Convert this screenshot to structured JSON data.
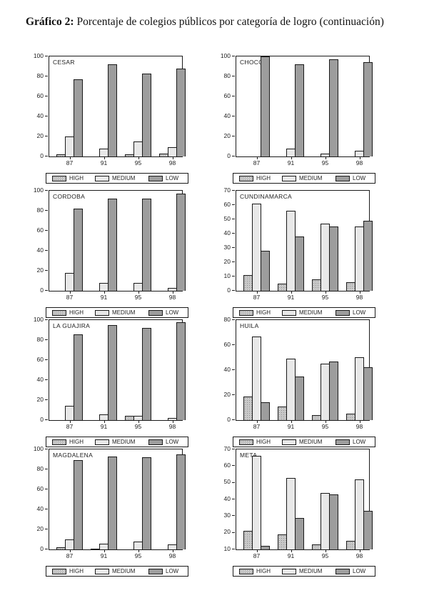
{
  "page": {
    "title_prefix": "Gráfico 2:",
    "title_text": " Porcentaje de colegios públicos por categoría de logro (continuación)"
  },
  "legend": {
    "position": "bottom",
    "items": [
      {
        "key": "high",
        "label": "HIGH",
        "color": "#c8c8c8"
      },
      {
        "key": "medium",
        "label": "MEDIUM",
        "color": "#e8e8e8"
      },
      {
        "key": "low",
        "label": "LOW",
        "color": "#9d9d9d"
      }
    ]
  },
  "chart_data": [
    {
      "type": "bar",
      "title": "CESAR",
      "grid": false,
      "categories": [
        "87",
        "91",
        "95",
        "98"
      ],
      "ylim": [
        0,
        100
      ],
      "yticks": [
        0,
        20,
        40,
        60,
        80,
        100
      ],
      "series": [
        {
          "name": "HIGH",
          "values": [
            2,
            0,
            2,
            3
          ]
        },
        {
          "name": "MEDIUM",
          "values": [
            20,
            8,
            15,
            9
          ]
        },
        {
          "name": "LOW",
          "values": [
            77,
            92,
            83,
            88
          ]
        }
      ]
    },
    {
      "type": "bar",
      "title": "CHOCO",
      "grid": false,
      "categories": [
        "87",
        "91",
        "95",
        "98"
      ],
      "ylim": [
        0,
        100
      ],
      "yticks": [
        0,
        20,
        40,
        60,
        80,
        100
      ],
      "series": [
        {
          "name": "HIGH",
          "values": [
            0,
            0,
            0,
            0
          ]
        },
        {
          "name": "MEDIUM",
          "values": [
            0,
            8,
            3,
            6
          ]
        },
        {
          "name": "LOW",
          "values": [
            100,
            92,
            97,
            94
          ]
        }
      ]
    },
    {
      "type": "bar",
      "title": "CORDOBA",
      "grid": false,
      "categories": [
        "87",
        "91",
        "95",
        "98"
      ],
      "ylim": [
        0,
        100
      ],
      "yticks": [
        0,
        20,
        40,
        60,
        80,
        100
      ],
      "series": [
        {
          "name": "HIGH",
          "values": [
            0,
            0,
            0,
            0
          ]
        },
        {
          "name": "MEDIUM",
          "values": [
            18,
            8,
            8,
            3
          ]
        },
        {
          "name": "LOW",
          "values": [
            82,
            92,
            92,
            97
          ]
        }
      ]
    },
    {
      "type": "bar",
      "title": "CUNDINAMARCA",
      "grid": false,
      "categories": [
        "87",
        "91",
        "95",
        "98"
      ],
      "ylim": [
        0,
        70
      ],
      "yticks": [
        0,
        10,
        20,
        30,
        40,
        50,
        60,
        70
      ],
      "series": [
        {
          "name": "HIGH",
          "values": [
            11,
            5,
            8,
            6
          ]
        },
        {
          "name": "MEDIUM",
          "values": [
            61,
            56,
            47,
            45
          ]
        },
        {
          "name": "LOW",
          "values": [
            28,
            38,
            45,
            49
          ]
        }
      ]
    },
    {
      "type": "bar",
      "title": "LA GUAJIRA",
      "grid": false,
      "categories": [
        "87",
        "91",
        "95",
        "98"
      ],
      "ylim": [
        0,
        100
      ],
      "yticks": [
        0,
        20,
        40,
        60,
        80,
        100
      ],
      "series": [
        {
          "name": "HIGH",
          "values": [
            0,
            0,
            4,
            0
          ]
        },
        {
          "name": "MEDIUM",
          "values": [
            14,
            6,
            4,
            2
          ]
        },
        {
          "name": "LOW",
          "values": [
            86,
            95,
            92,
            98
          ]
        }
      ]
    },
    {
      "type": "bar",
      "title": "HUILA",
      "grid": false,
      "categories": [
        "87",
        "91",
        "95",
        "98"
      ],
      "ylim": [
        0,
        80
      ],
      "yticks": [
        0,
        20,
        40,
        60,
        80
      ],
      "series": [
        {
          "name": "HIGH",
          "values": [
            19,
            11,
            4,
            5
          ]
        },
        {
          "name": "MEDIUM",
          "values": [
            67,
            49,
            45,
            50
          ]
        },
        {
          "name": "LOW",
          "values": [
            14,
            35,
            47,
            42
          ]
        }
      ]
    },
    {
      "type": "bar",
      "title": "MAGDALENA",
      "grid": false,
      "categories": [
        "87",
        "91",
        "95",
        "98"
      ],
      "ylim": [
        0,
        100
      ],
      "yticks": [
        0,
        20,
        40,
        60,
        80,
        100
      ],
      "series": [
        {
          "name": "HIGH",
          "values": [
            2,
            1,
            0,
            0
          ]
        },
        {
          "name": "MEDIUM",
          "values": [
            10,
            6,
            8,
            5
          ]
        },
        {
          "name": "LOW",
          "values": [
            89,
            93,
            92,
            95
          ]
        }
      ]
    },
    {
      "type": "bar",
      "title": "META",
      "grid": false,
      "categories": [
        "87",
        "91",
        "95",
        "98"
      ],
      "ylim": [
        10,
        70
      ],
      "yticks": [
        10,
        20,
        30,
        40,
        50,
        60,
        70
      ],
      "series": [
        {
          "name": "HIGH",
          "values": [
            21,
            19,
            13,
            15
          ]
        },
        {
          "name": "MEDIUM",
          "values": [
            66,
            53,
            44,
            52
          ]
        },
        {
          "name": "LOW",
          "values": [
            12,
            29,
            43,
            33
          ]
        }
      ]
    }
  ]
}
